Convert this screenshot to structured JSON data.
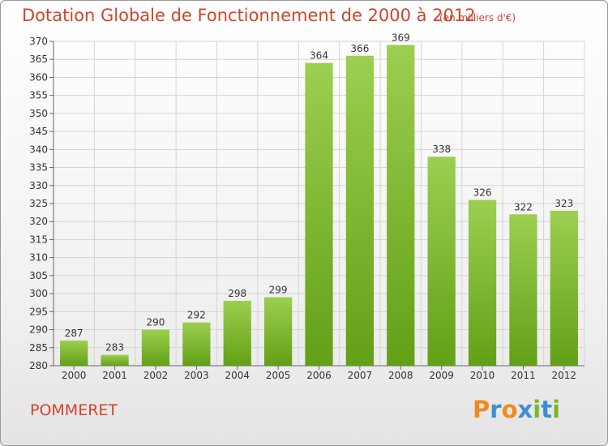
{
  "header": {
    "title": "Dotation Globale de Fonctionnement de 2000 à 2012",
    "subtitle": "(en milliers d'€)"
  },
  "footer": {
    "town": "POMMERET",
    "logo_text": "Proxiti"
  },
  "colors": {
    "title": "#d1442c",
    "bar_top": "#9ccf50",
    "bar_bottom": "#62a016",
    "logo_letters": [
      "#f08a1c",
      "#3d8fd1",
      "#f08a1c",
      "#3d8fd1",
      "#79b82c",
      "#3d8fd1",
      "#79b82c"
    ]
  },
  "chart_data": {
    "type": "bar",
    "title": "Dotation Globale de Fonctionnement de 2000 à 2012",
    "subtitle": "(en milliers d'€)",
    "xlabel": "",
    "ylabel": "",
    "categories": [
      "2000",
      "2001",
      "2002",
      "2003",
      "2004",
      "2005",
      "2006",
      "2007",
      "2008",
      "2009",
      "2010",
      "2011",
      "2012"
    ],
    "values": [
      287,
      283,
      290,
      292,
      298,
      299,
      364,
      366,
      369,
      338,
      326,
      322,
      323
    ],
    "ylim": [
      280,
      370
    ],
    "yticks": [
      280,
      285,
      290,
      295,
      300,
      305,
      310,
      315,
      320,
      325,
      330,
      335,
      340,
      345,
      350,
      355,
      360,
      365,
      370
    ],
    "grid": true,
    "legend": "none"
  }
}
